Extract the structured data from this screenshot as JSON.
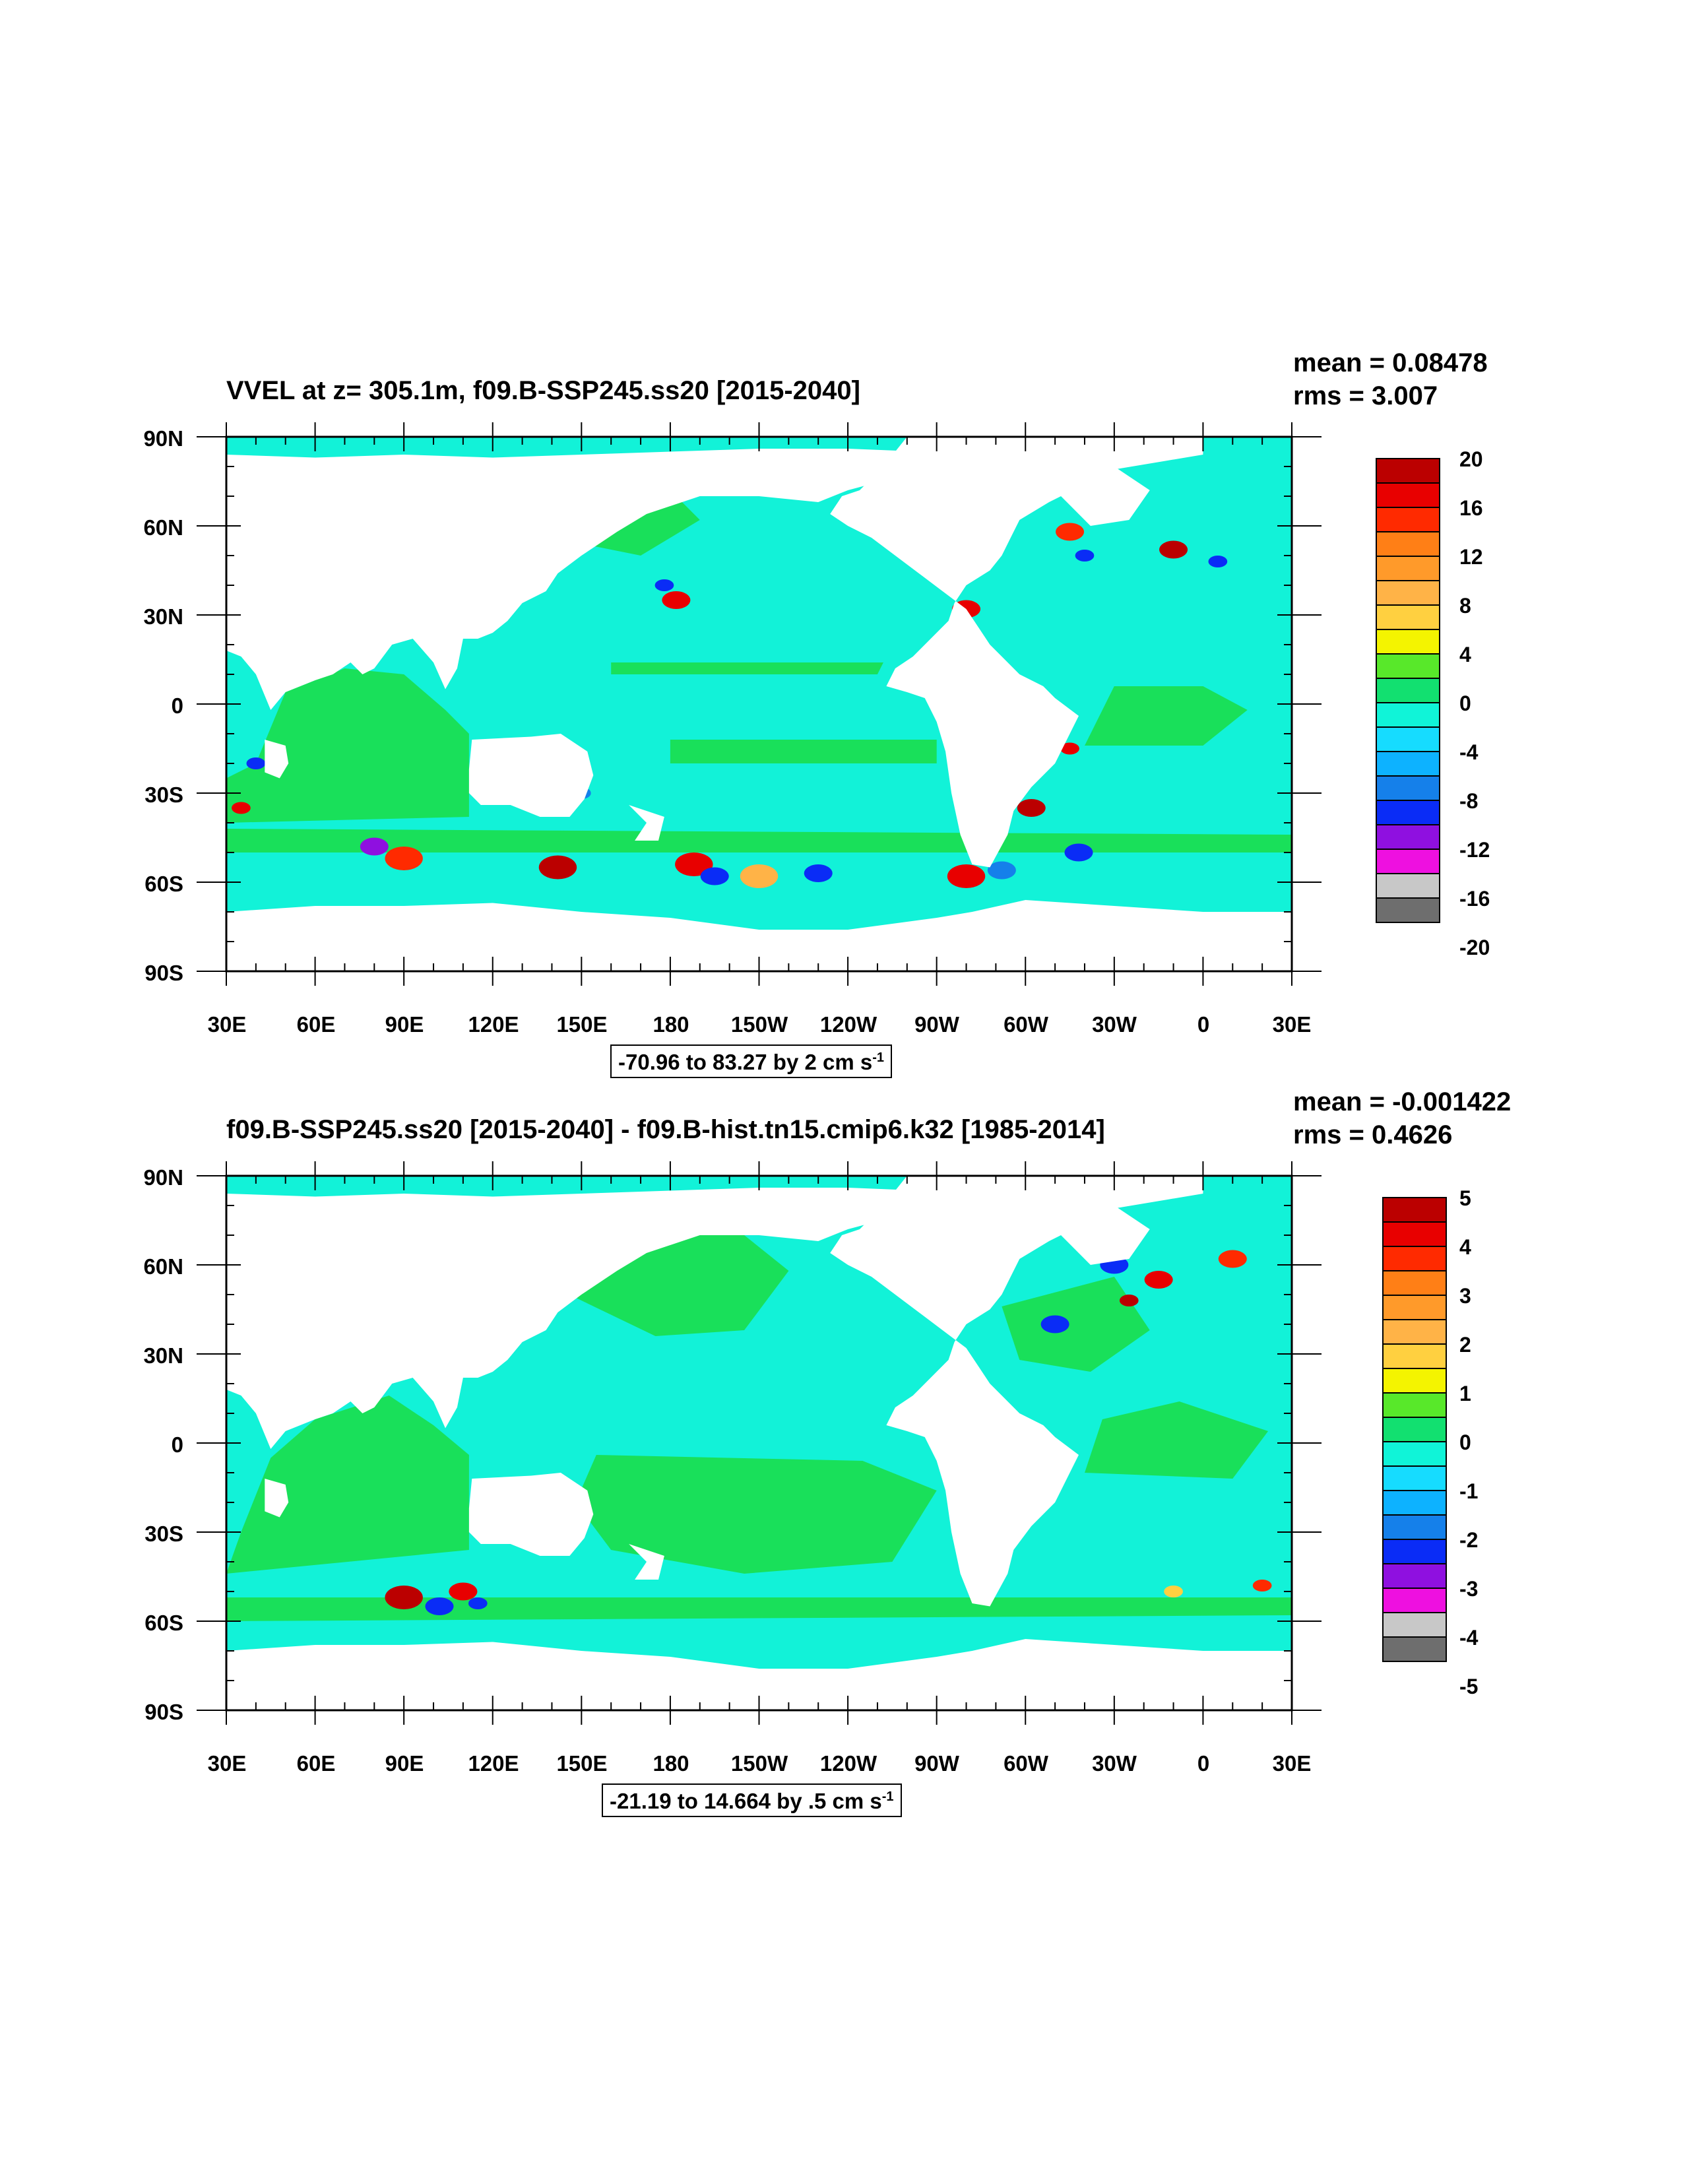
{
  "panels": [
    {
      "title": "VVEL at z= 305.1m, f09.B-SSP245.ss20 [2015-2040]",
      "mean_label": "mean = 0.08478",
      "rms_label": "rms = 3.007",
      "lat_labels": [
        "90N",
        "60N",
        "30N",
        "0",
        "30S",
        "60S",
        "90S"
      ],
      "lon_labels": [
        "30E",
        "60E",
        "90E",
        "120E",
        "150E",
        "180",
        "150W",
        "120W",
        "90W",
        "60W",
        "30W",
        "0",
        "30E"
      ],
      "range_label": "-70.96 to 83.27 by 2 cm s",
      "range_unit_exp": "-1",
      "colorbar_labels": [
        "20",
        "16",
        "12",
        "8",
        "4",
        "0",
        "-4",
        "-8",
        "-12",
        "-16",
        "-20"
      ]
    },
    {
      "title": "f09.B-SSP245.ss20 [2015-2040] - f09.B-hist.tn15.cmip6.k32 [1985-2014]",
      "mean_label": "mean = -0.001422",
      "rms_label": "rms = 0.4626",
      "lat_labels": [
        "90N",
        "60N",
        "30N",
        "0",
        "30S",
        "60S",
        "90S"
      ],
      "lon_labels": [
        "30E",
        "60E",
        "90E",
        "120E",
        "150E",
        "180",
        "150W",
        "120W",
        "90W",
        "60W",
        "30W",
        "0",
        "30E"
      ],
      "range_label": "-21.19 to 14.664 by .5 cm s",
      "range_unit_exp": "-1",
      "colorbar_labels": [
        "5",
        "4",
        "3",
        "2",
        "1",
        "0",
        "-1",
        "-2",
        "-3",
        "-4",
        "-5"
      ]
    }
  ],
  "colors": {
    "palette": [
      "#bb0000",
      "#e80000",
      "#ff2a00",
      "#ff7f16",
      "#ff9a2a",
      "#ffb347",
      "#ffd040",
      "#f4f400",
      "#58e82a",
      "#12e070",
      "#10f4d8",
      "#16dcff",
      "#0db2ff",
      "#1580ea",
      "#0a2cf6",
      "#8f10e0",
      "#ee10e0",
      "#c8c8c8",
      "#6e6e6e"
    ],
    "ocean_green": "#19e05a",
    "ocean_cyan": "#12f2d8",
    "land": "#ffffff"
  }
}
